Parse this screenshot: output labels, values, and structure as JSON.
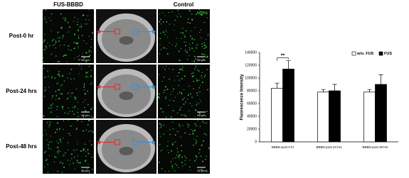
{
  "figure": {
    "fus_header": "FUS-BBBD",
    "control_header": "Control",
    "stain_label": "AQP4",
    "scale_bar_label": "50 μm",
    "row_labels": [
      "Post-0 hr",
      "Post-24 hrs",
      "Post-48 hrs"
    ]
  },
  "chart_data": {
    "type": "bar",
    "y_label": "Fluorescence Intensity",
    "categories": [
      "BBBD-post 0 hr",
      "BBBD-post 24 hrs",
      "BBBD-post 48 hrs"
    ],
    "series": [
      {
        "name": "w/o. FUS",
        "color": "#ffffff",
        "values": [
          84000,
          78000,
          78000
        ],
        "errors": [
          8000,
          4000,
          4000
        ]
      },
      {
        "name": "FUS",
        "color": "#000000",
        "values": [
          114000,
          80000,
          90000
        ],
        "errors": [
          13000,
          10000,
          15000
        ]
      }
    ],
    "significance": "**",
    "ylim": [
      0,
      140000
    ],
    "yticks": [
      0,
      20000,
      40000,
      60000,
      80000,
      100000,
      120000,
      140000
    ],
    "legend": "upper right"
  }
}
